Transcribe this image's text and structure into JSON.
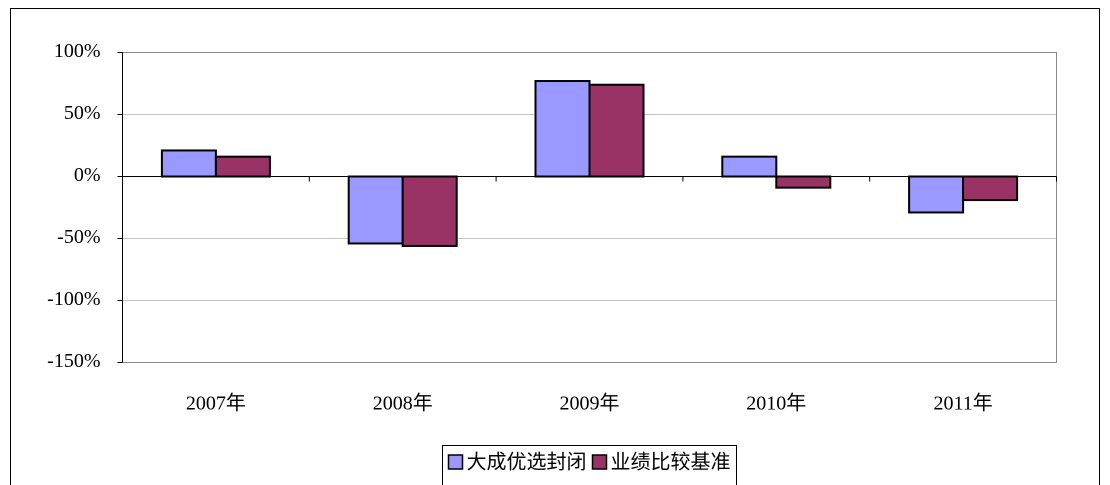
{
  "chart_data": {
    "type": "bar",
    "categories": [
      "2007年",
      "2008年",
      "2009年",
      "2010年",
      "2011年"
    ],
    "series": [
      {
        "name": "大成优选封闭",
        "color": "#9999ff",
        "values": [
          21,
          -54,
          77,
          16,
          -29
        ]
      },
      {
        "name": "业绩比较基准",
        "color": "#993366",
        "values": [
          16,
          -56,
          74,
          -9,
          -19
        ]
      }
    ],
    "ylim": [
      -150,
      100
    ],
    "yticks": [
      {
        "value": -150,
        "label": "-150%"
      },
      {
        "value": -100,
        "label": "-100%"
      },
      {
        "value": -50,
        "label": "-50%"
      },
      {
        "value": 0,
        "label": "0%"
      },
      {
        "value": 50,
        "label": "50%"
      },
      {
        "value": 100,
        "label": "100%"
      }
    ],
    "grid": true,
    "legend": "bottom"
  }
}
